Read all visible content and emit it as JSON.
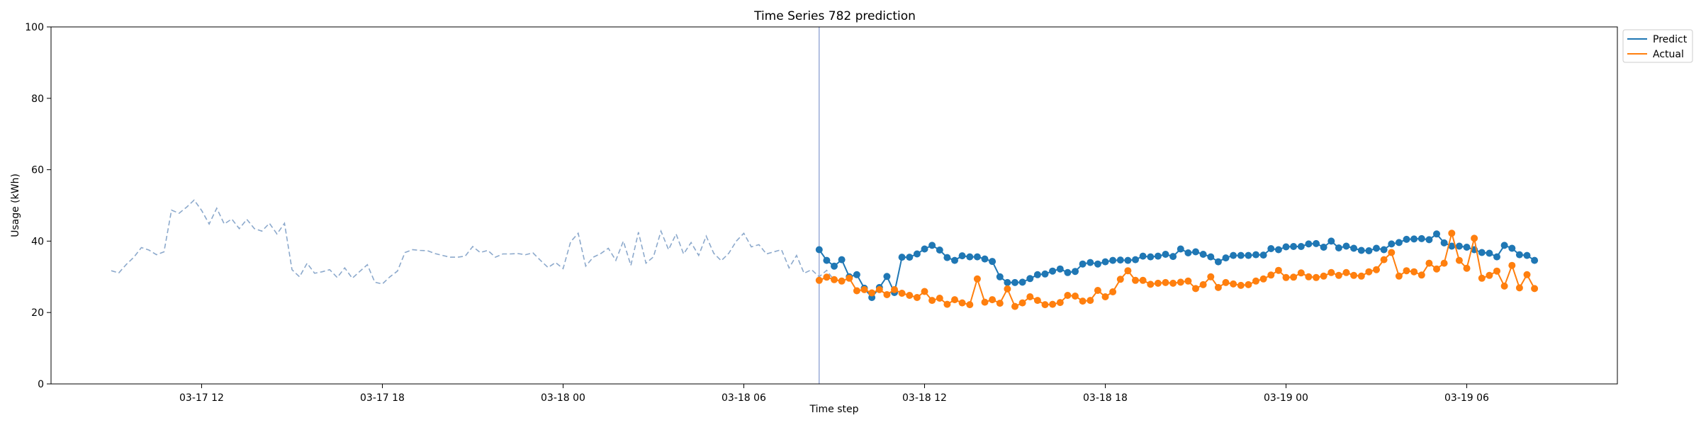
{
  "chart_data": {
    "type": "line",
    "title": "Time Series 782 prediction",
    "xlabel": "Time step",
    "ylabel": "Usage (kWh)",
    "ylim": [
      0,
      100
    ],
    "yticks": [
      0,
      20,
      40,
      60,
      80,
      100
    ],
    "xlim": [
      "2025-03-17 07:00",
      "2025-03-19 11:00"
    ],
    "xticks": [
      {
        "t": "2025-03-17 12:00",
        "label": "03-17 12"
      },
      {
        "t": "2025-03-17 18:00",
        "label": "03-17 18"
      },
      {
        "t": "2025-03-18 00:00",
        "label": "03-18 00"
      },
      {
        "t": "2025-03-18 06:00",
        "label": "03-18 06"
      },
      {
        "t": "2025-03-18 12:00",
        "label": "03-18 12"
      },
      {
        "t": "2025-03-18 18:00",
        "label": "03-18 18"
      },
      {
        "t": "2025-03-19 00:00",
        "label": "03-19 00"
      },
      {
        "t": "2025-03-19 06:00",
        "label": "03-19 06"
      }
    ],
    "start_time": "2025-03-17 09:00",
    "interval_minutes": 15,
    "forecast_start": "2025-03-18 08:30",
    "legend": {
      "position": "top-right",
      "entries": [
        "Predict",
        "Actual"
      ]
    },
    "colors": {
      "history": "#8ca9cc",
      "predict": "#1f77b4",
      "actual": "#ff7f0e",
      "divider": "#8a9fd1"
    },
    "series": [
      {
        "name": "",
        "role": "history",
        "values": [
          31.7,
          31.1,
          33.5,
          35.5,
          38.2,
          37.5,
          36.2,
          37.0,
          48.7,
          47.8,
          49.5,
          51.5,
          48.6,
          44.8,
          49.2,
          44.8,
          46.2,
          43.5,
          46.1,
          43.5,
          42.8,
          45.0,
          42.0,
          45.0,
          32.0,
          30.0,
          33.8,
          31.0,
          31.4,
          32.0,
          29.8,
          32.5,
          29.6,
          31.5,
          33.4,
          28.5,
          28.0,
          30.0,
          31.6,
          36.8,
          37.6,
          37.4,
          37.3,
          36.5,
          36.0,
          35.5,
          35.5,
          35.8,
          38.5,
          36.8,
          37.4,
          35.5,
          36.4,
          36.4,
          36.5,
          36.2,
          36.7,
          34.6,
          32.6,
          34.0,
          32.3,
          39.8,
          42.2,
          33.0,
          35.5,
          36.5,
          38.0,
          34.6,
          40.0,
          33.2,
          42.5,
          33.8,
          35.6,
          42.8,
          37.6,
          42.0,
          36.4,
          39.6,
          36.0,
          41.4,
          36.6,
          34.5,
          36.6,
          40.0,
          42.2,
          38.4,
          39.0,
          36.4,
          37.0,
          37.6,
          32.5,
          36.0,
          31.0,
          32.0,
          30.0,
          31.8,
          29.0
        ]
      },
      {
        "name": "Predict",
        "role": "predict",
        "values": [
          37.6,
          34.6,
          33.0,
          34.8,
          30.0,
          30.6,
          26.8,
          24.2,
          27.0,
          30.1,
          25.6,
          35.5,
          35.5,
          36.4,
          37.8,
          38.8,
          37.5,
          35.4,
          34.6,
          35.9,
          35.6,
          35.6,
          35.0,
          34.3,
          30.0,
          28.4,
          28.4,
          28.5,
          29.5,
          30.6,
          30.8,
          31.6,
          32.2,
          31.2,
          31.5,
          33.6,
          34.0,
          33.6,
          34.2,
          34.6,
          34.7,
          34.6,
          34.8,
          35.8,
          35.6,
          35.8,
          36.3,
          35.7,
          37.8,
          36.7,
          37.0,
          36.3,
          35.6,
          34.2,
          35.3,
          36.0,
          36.0,
          36.0,
          36.2,
          36.1,
          37.9,
          37.6,
          38.4,
          38.5,
          38.5,
          39.2,
          39.3,
          38.3,
          40.0,
          38.1,
          38.6,
          38.0,
          37.4,
          37.3,
          38.0,
          37.6,
          39.2,
          39.6,
          40.5,
          40.6,
          40.7,
          40.4,
          42.0,
          39.5,
          38.6,
          38.6,
          38.3,
          37.6,
          36.8,
          36.6,
          35.6,
          38.8,
          38.0,
          36.2,
          36.0,
          34.6
        ]
      },
      {
        "name": "Actual",
        "role": "actual",
        "values": [
          29.0,
          29.9,
          29.2,
          28.8,
          29.6,
          26.1,
          26.4,
          25.5,
          26.4,
          25.0,
          26.4,
          25.4,
          24.8,
          24.2,
          25.9,
          23.4,
          24.0,
          22.3,
          23.6,
          22.7,
          22.2,
          29.4,
          22.9,
          23.6,
          22.6,
          26.6,
          21.7,
          22.7,
          24.4,
          23.4,
          22.2,
          22.3,
          22.8,
          24.8,
          24.6,
          23.2,
          23.4,
          26.2,
          24.4,
          25.8,
          29.3,
          31.7,
          29.0,
          29.0,
          27.9,
          28.2,
          28.4,
          28.2,
          28.5,
          28.8,
          26.7,
          27.8,
          30.0,
          27.0,
          28.4,
          28.0,
          27.6,
          27.8,
          28.8,
          29.4,
          30.5,
          31.8,
          29.8,
          29.9,
          31.1,
          30.0,
          29.8,
          30.2,
          31.2,
          30.4,
          31.2,
          30.4,
          30.2,
          31.4,
          32.0,
          34.8,
          36.8,
          30.2,
          31.7,
          31.4,
          30.5,
          33.8,
          32.2,
          33.8,
          42.2,
          34.6,
          32.4,
          40.8,
          29.6,
          30.4,
          31.6,
          27.4,
          33.2,
          26.9,
          30.6,
          26.7
        ]
      }
    ]
  }
}
